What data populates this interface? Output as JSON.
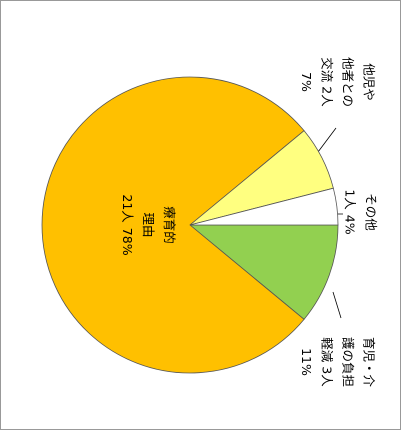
{
  "chart_data": {
    "type": "pie",
    "categories": [
      [
        "育児・介",
        "護の負担",
        "軽減 3人"
      ],
      [
        "療育的",
        "理由",
        "21人"
      ],
      [
        "他児や",
        "他者との",
        "交流 2人"
      ],
      [
        "その他",
        "1人"
      ]
    ],
    "values": [
      11,
      78,
      7,
      4
    ],
    "value_labels": [
      "11%",
      "78%",
      "7%",
      "4%"
    ],
    "colors": [
      "#92d050",
      "#ffc000",
      "#ffff80",
      "#ffffff"
    ]
  }
}
